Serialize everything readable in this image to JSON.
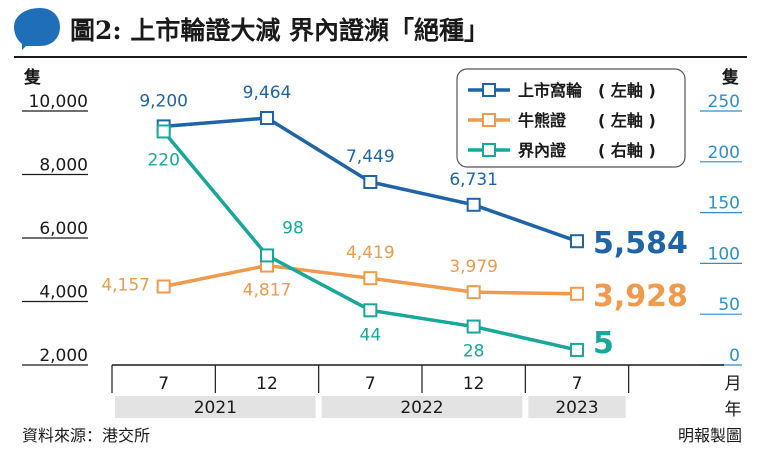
{
  "header": {
    "title": "圖2: 上市輪證大減  界內證瀕「絕種」"
  },
  "footer": {
    "source": "資料來源：港交所",
    "credit": "明報製圖"
  },
  "chart_data": {
    "type": "line",
    "title": "圖2: 上市輪證大減  界內證瀕「絕種」",
    "categories": [
      "7",
      "12",
      "7",
      "12",
      "7"
    ],
    "year_groups": [
      {
        "label": "2021",
        "span": [
          0,
          1
        ]
      },
      {
        "label": "2022",
        "span": [
          2,
          3
        ]
      },
      {
        "label": "2023",
        "span": [
          4,
          4
        ]
      }
    ],
    "x_unit": "月",
    "x_unit_year": "年",
    "y_left": {
      "unit": "隻",
      "range": [
        2000,
        10000
      ],
      "ticks": [
        "2,000",
        "4,000",
        "6,000",
        "8,000",
        "10,000"
      ],
      "tick_values": [
        2000,
        4000,
        6000,
        8000,
        10000
      ]
    },
    "y_right": {
      "unit": "隻",
      "range": [
        0,
        250
      ],
      "ticks": [
        "0",
        "50",
        "100",
        "150",
        "200",
        "250"
      ],
      "tick_values": [
        0,
        50,
        100,
        150,
        200,
        250
      ],
      "color": "#2f8fc8"
    },
    "grid": false,
    "legend_position": "top-right",
    "series": [
      {
        "name": "上市窩輪",
        "axis_note": "左軸",
        "axis": "left",
        "color": "#1f64a6",
        "values": [
          9200,
          9464,
          7449,
          6731,
          5584
        ],
        "labels": [
          "9,200",
          "9,464",
          "7,449",
          "6,731",
          "5,584"
        ]
      },
      {
        "name": "牛熊證",
        "axis_note": "左軸",
        "axis": "left",
        "color": "#ef9a4c",
        "values": [
          4157,
          4817,
          4419,
          3979,
          3928
        ],
        "labels": [
          "4,157",
          "4,817",
          "4,419",
          "3,979",
          "3,928"
        ]
      },
      {
        "name": "界內證",
        "axis_note": "右軸",
        "axis": "right",
        "color": "#17a89a",
        "values": [
          220,
          98,
          44,
          28,
          5
        ],
        "labels": [
          "220",
          "98",
          "44",
          "28",
          "5"
        ]
      }
    ]
  }
}
